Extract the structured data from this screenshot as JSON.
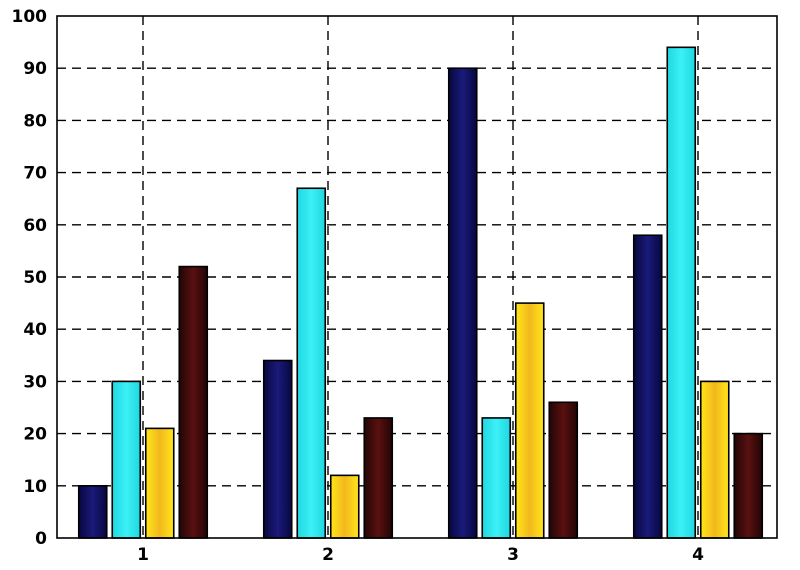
{
  "chart_data": {
    "type": "bar",
    "title": "",
    "xlabel": "",
    "ylabel": "",
    "categories": [
      "1",
      "2",
      "3",
      "4"
    ],
    "series": [
      {
        "values": [
          10,
          34,
          90,
          58
        ],
        "color": "#0a0a5a"
      },
      {
        "values": [
          30,
          67,
          23,
          94
        ],
        "color": "#22e5ee"
      },
      {
        "values": [
          21,
          12,
          45,
          30
        ],
        "color": "#f5e01a"
      },
      {
        "values": [
          52,
          23,
          26,
          20
        ],
        "color": "#3a0a0a"
      }
    ],
    "ylim": [
      0,
      100
    ],
    "yticks": [
      0,
      10,
      20,
      30,
      40,
      50,
      60,
      70,
      80,
      90,
      100
    ],
    "grid": true,
    "grid_style": "dashed",
    "legend": "none"
  }
}
